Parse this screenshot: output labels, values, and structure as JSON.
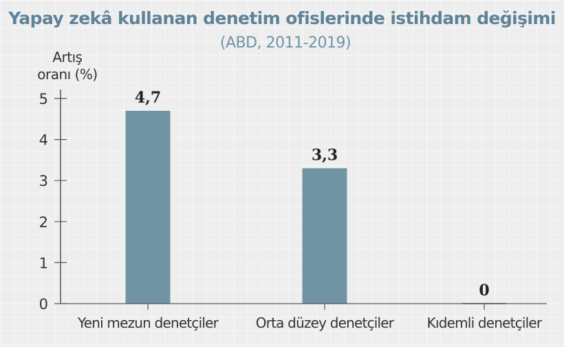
{
  "chart_data": {
    "type": "bar",
    "title": "Yapay zekâ kullanan denetim ofislerinde istihdam değişimi",
    "subtitle": "(ABD, 2011-2019)",
    "ylabel": [
      "Artış",
      "oranı (%)"
    ],
    "xlabel": "",
    "categories": [
      "Yeni mezun denetçiler",
      "Orta düzey denetçiler",
      "Kıdemli denetçiler"
    ],
    "values": [
      4.7,
      3.3,
      0
    ],
    "value_labels": [
      "4,7",
      "3,3",
      "0"
    ],
    "ylim": [
      0,
      5
    ],
    "yticks": [
      "0",
      "1",
      "2",
      "3",
      "4",
      "5"
    ],
    "grid": false,
    "colors": {
      "bar": "#7194a4",
      "title": "#5e8398",
      "axis": "#555555"
    }
  }
}
